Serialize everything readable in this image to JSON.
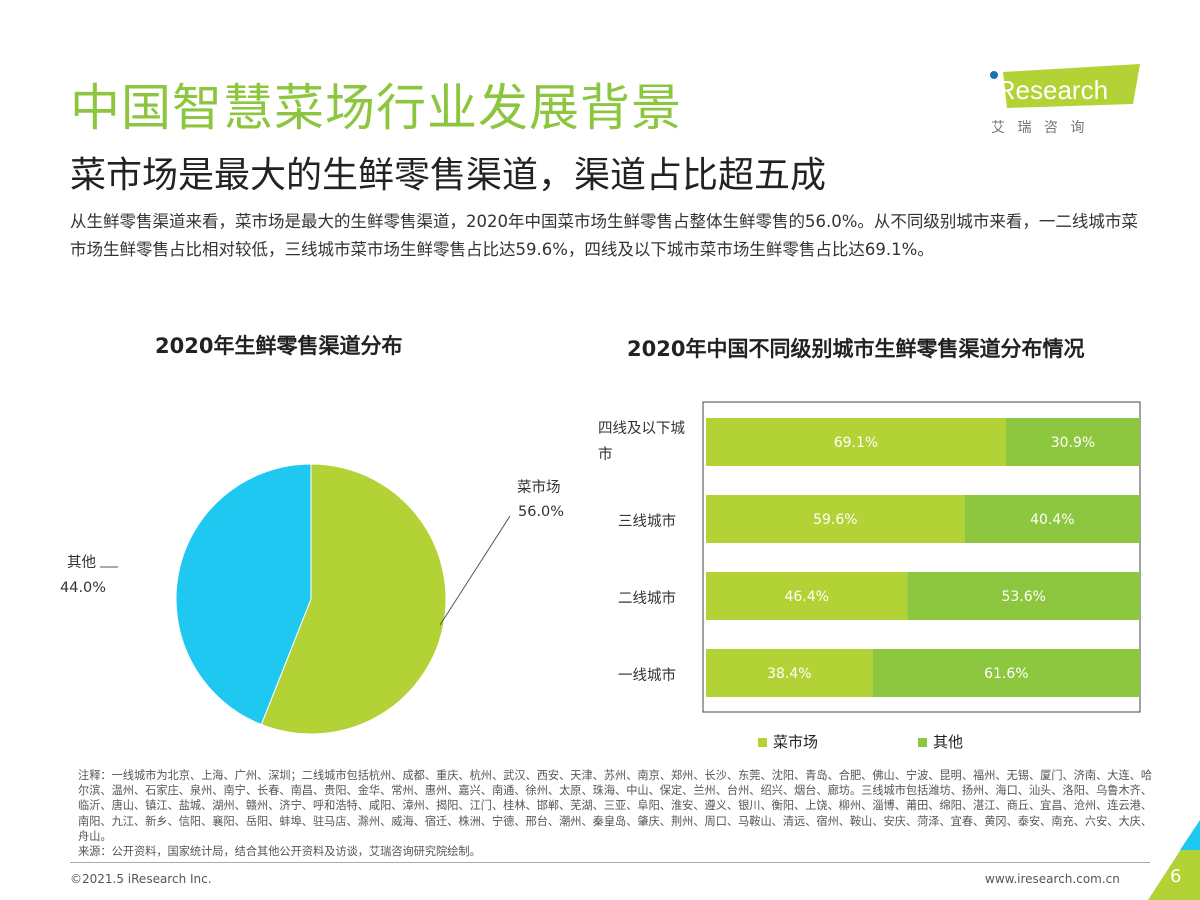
{
  "header": {
    "title": "中国智慧菜场行业发展背景",
    "subtitle": "菜市场是最大的生鲜零售渠道，渠道占比超五成",
    "description": "从生鲜零售渠道来看，菜市场是最大的生鲜零售渠道，2020年中国菜市场生鲜零售占整体生鲜零售的56.0%。从不同级别城市来看，一二线城市菜市场生鲜零售占比相对较低，三线城市菜市场生鲜零售占比达59.6%，四线及以下城市菜市场生鲜零售占比达69.1%。"
  },
  "logo": {
    "text": "iResearch",
    "cn": "艾 瑞 咨 询"
  },
  "colors": {
    "title": "#8cc63f",
    "lime": "#b2d235",
    "green": "#8dc63f",
    "cyan": "#1ec8f0"
  },
  "chart_data": [
    {
      "type": "pie",
      "title": "2020年生鲜零售渠道分布",
      "slices": [
        {
          "name": "菜市场",
          "value": 56.0,
          "label": "56.0%",
          "color": "#b2d235"
        },
        {
          "name": "其他",
          "value": 44.0,
          "label": "44.0%",
          "color": "#1ec8f0"
        }
      ]
    },
    {
      "type": "bar",
      "orientation": "horizontal",
      "stacked": true,
      "percent": true,
      "title": "2020年中国不同级别城市生鲜零售渠道分布情况",
      "categories": [
        "四线及以下城市",
        "三线城市",
        "二线城市",
        "一线城市"
      ],
      "series": [
        {
          "name": "菜市场",
          "values": [
            69.1,
            59.6,
            46.4,
            38.4
          ],
          "color": "#b2d235"
        },
        {
          "name": "其他",
          "values": [
            30.9,
            40.4,
            53.6,
            61.6
          ],
          "color": "#8dc63f"
        }
      ],
      "legend": "bottom"
    }
  ],
  "notes": "注释：一线城市为北京、上海、广州、深圳；二线城市包括杭州、成都、重庆、杭州、武汉、西安、天津、苏州、南京、郑州、长沙、东莞、沈阳、青岛、合肥、佛山、宁波、昆明、福州、无锡、厦门、济南、大连、哈尔滨、温州、石家庄、泉州、南宁、长春、南昌、贵阳、金华、常州、惠州、嘉兴、南通、徐州、太原、珠海、中山、保定、兰州、台州、绍兴、烟台、廊坊。三线城市包括潍坊、扬州、海口、汕头、洛阳、乌鲁木齐、临沂、唐山、镇江、盐城、湖州、赣州、济宁、呼和浩特、咸阳、漳州、揭阳、江门、桂林、邯郸、芜湖、三亚、阜阳、淮安、遵义、银川、衡阳、上饶、柳州、淄博、莆田、绵阳、湛江、商丘、宜昌、沧州、连云港、南阳、九江、新乡、信阳、襄阳、岳阳、蚌埠、驻马店、滁州、威海、宿迁、株洲、宁德、邢台、潮州、秦皇岛、肇庆、荆州、周口、马鞍山、清远、宿州、鞍山、安庆、菏泽、宜春、黄冈、泰安、南充、六安、大庆、舟山。",
  "source": "来源：公开资料，国家统计局，结合其他公开资料及访谈，艾瑞咨询研究院绘制。",
  "footer": {
    "copyright": "©2021.5 iResearch Inc.",
    "url": "www.iresearch.com.cn",
    "page": "6"
  }
}
